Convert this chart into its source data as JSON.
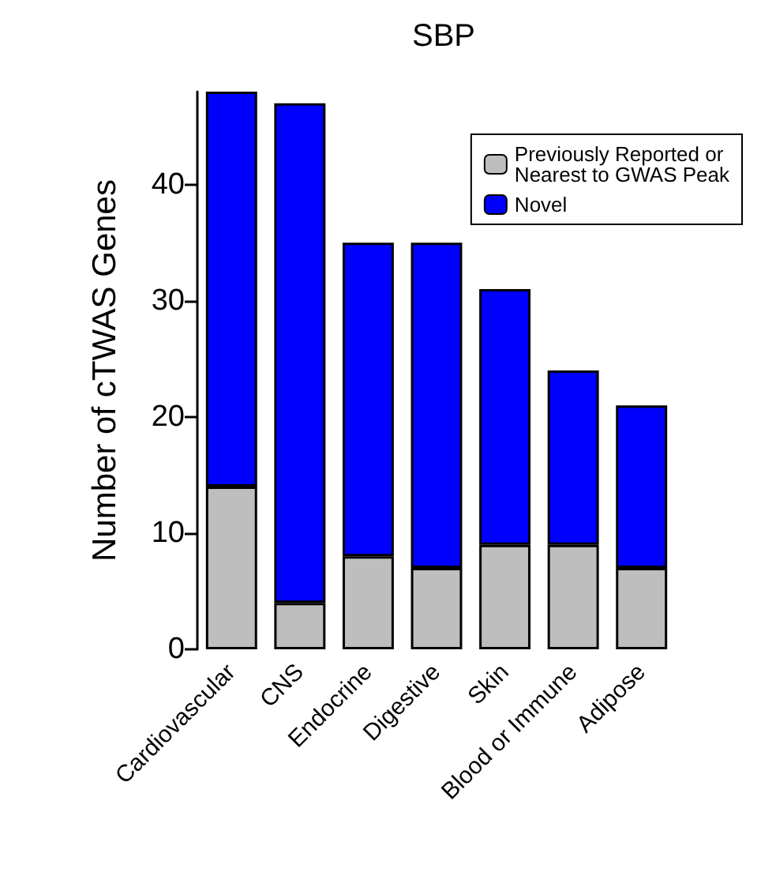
{
  "chart_data": {
    "type": "bar",
    "title": "SBP",
    "ylabel": "Number of cTWAS Genes",
    "categories": [
      "Cardiovascular",
      "CNS",
      "Endocrine",
      "Digestive",
      "Skin",
      "Blood or Immune",
      "Adipose"
    ],
    "series": [
      {
        "name": "Previously Reported or Nearest to GWAS Peak",
        "color": "#bebebe",
        "values": [
          14,
          4,
          8,
          7,
          9,
          9,
          7
        ]
      },
      {
        "name": "Novel",
        "color": "#0000ff",
        "values": [
          34,
          43,
          27,
          28,
          22,
          15,
          14
        ]
      }
    ],
    "stacked": true,
    "ylim": [
      0,
      48
    ],
    "yticks": [
      0,
      10,
      20,
      30,
      40
    ],
    "grid": false,
    "legend": "top right"
  }
}
